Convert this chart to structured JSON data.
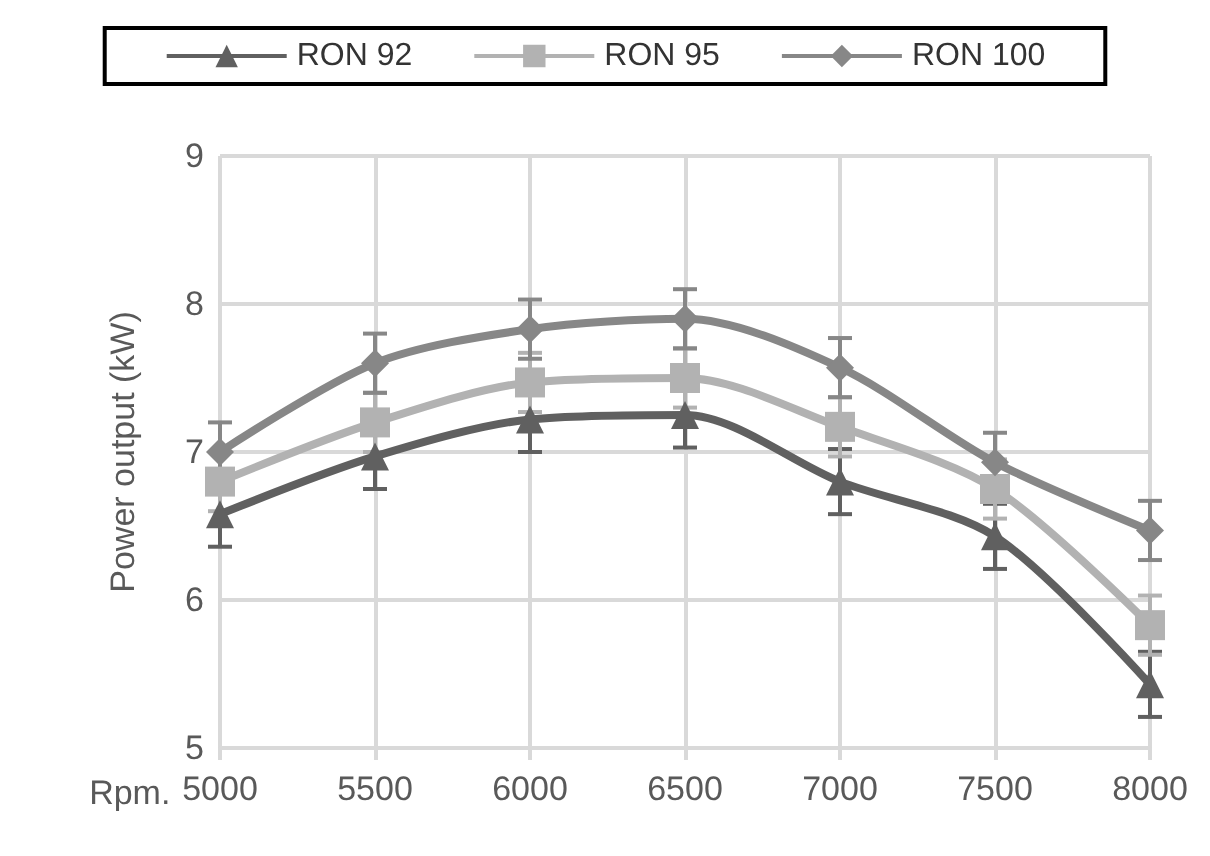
{
  "chart_data": {
    "type": "line",
    "xlabel": "Rpm.",
    "ylabel": "Power output (kW)",
    "categories": [
      "5000",
      "5500",
      "6000",
      "6500",
      "7000",
      "7500",
      "8000"
    ],
    "series": [
      {
        "name": "RON 92",
        "color": "#606060",
        "marker": "triangle",
        "values": [
          6.58,
          6.97,
          7.22,
          7.25,
          6.8,
          6.43,
          5.43
        ],
        "errors": [
          0.22,
          0.22,
          0.22,
          0.22,
          0.22,
          0.22,
          0.22
        ]
      },
      {
        "name": "RON 95",
        "color": "#b2b2b2",
        "marker": "square",
        "values": [
          6.8,
          7.2,
          7.47,
          7.5,
          7.17,
          6.75,
          5.83
        ],
        "errors": [
          0.2,
          0.2,
          0.2,
          0.2,
          0.2,
          0.2,
          0.2
        ]
      },
      {
        "name": "RON 100",
        "color": "#878787",
        "marker": "diamond",
        "values": [
          7.0,
          7.6,
          7.83,
          7.9,
          7.57,
          6.93,
          6.47
        ],
        "errors": [
          0.2,
          0.2,
          0.2,
          0.2,
          0.2,
          0.2,
          0.2
        ]
      }
    ],
    "ylim": [
      5,
      9
    ],
    "yticks": [
      5,
      6,
      7,
      8,
      9
    ],
    "grid": true,
    "legend": "top"
  }
}
